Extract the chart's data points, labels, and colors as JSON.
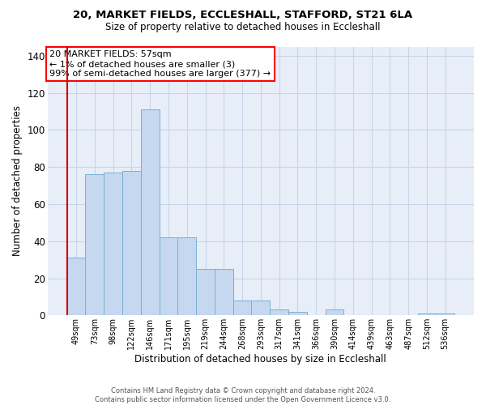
{
  "title1": "20, MARKET FIELDS, ECCLESHALL, STAFFORD, ST21 6LA",
  "title2": "Size of property relative to detached houses in Eccleshall",
  "xlabel": "Distribution of detached houses by size in Eccleshall",
  "ylabel": "Number of detached properties",
  "categories": [
    "49sqm",
    "73sqm",
    "98sqm",
    "122sqm",
    "146sqm",
    "171sqm",
    "195sqm",
    "219sqm",
    "244sqm",
    "268sqm",
    "293sqm",
    "317sqm",
    "341sqm",
    "366sqm",
    "390sqm",
    "414sqm",
    "439sqm",
    "463sqm",
    "487sqm",
    "512sqm",
    "536sqm"
  ],
  "values": [
    31,
    76,
    77,
    78,
    111,
    42,
    42,
    25,
    25,
    8,
    8,
    3,
    2,
    0,
    3,
    0,
    0,
    0,
    0,
    1,
    1
  ],
  "bar_color": "#c5d8ef",
  "bar_edge_color": "#7aafd4",
  "highlight_color": "#cc0000",
  "annotation_text": "20 MARKET FIELDS: 57sqm\n← 1% of detached houses are smaller (3)\n99% of semi-detached houses are larger (377) →",
  "ylim": [
    0,
    145
  ],
  "yticks": [
    0,
    20,
    40,
    60,
    80,
    100,
    120,
    140
  ],
  "plot_bg_color": "#e8eef8",
  "grid_color": "#c8d4e8",
  "footer_line1": "Contains HM Land Registry data © Crown copyright and database right 2024.",
  "footer_line2": "Contains public sector information licensed under the Open Government Licence v3.0."
}
